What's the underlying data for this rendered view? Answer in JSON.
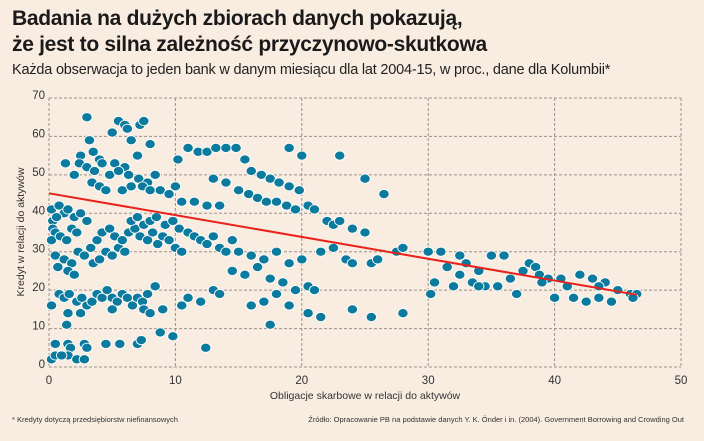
{
  "header": {
    "title_line1": "Badania na dużych zbiorach danych pokazują,",
    "title_line2": "że jest to silna zależność przyczynowo-skutkowa",
    "subtitle": "Każda obserwacja to jeden bank w danym miesiącu dla lat 2004-15, w proc., dane dla Kolumbii*"
  },
  "footer": {
    "note": "* Kredyty dotyczą przedsiębiorstw niefinansowych",
    "source": "Źródło: Opracowanie PB na podstawie danych Y. K. Önder i in. (2004). Government Borrowing and Crowding Out"
  },
  "colors": {
    "background": "#f9ece0",
    "point": "#0a7a9e",
    "point_edge": "#ffffff",
    "trend": "#e8211a",
    "grid": "#9a938c"
  },
  "chart_data": {
    "type": "scatter",
    "title": "Badania na dużych zbiorach danych pokazują, że jest to silna zależność przyczynowo-skutkowa",
    "xlabel": "Obligacje skarbowe w relacji do aktywów",
    "ylabel": "Kredyt w relacji do aktywów",
    "xlim": [
      0,
      50
    ],
    "ylim": [
      0,
      70
    ],
    "xticks": [
      0,
      10,
      20,
      30,
      40,
      50
    ],
    "yticks": [
      0,
      10,
      20,
      30,
      40,
      50,
      60,
      70
    ],
    "grid": true,
    "trendline": {
      "x": [
        0,
        46.5
      ],
      "y": [
        45.2,
        18.8
      ]
    },
    "points": [
      [
        0.2,
        41
      ],
      [
        0.3,
        38
      ],
      [
        0.3,
        36
      ],
      [
        0.5,
        35
      ],
      [
        0.2,
        33
      ],
      [
        0.8,
        42
      ],
      [
        1.2,
        40
      ],
      [
        0.6,
        39
      ],
      [
        1.5,
        41
      ],
      [
        2.0,
        39
      ],
      [
        2.5,
        40
      ],
      [
        3.0,
        38
      ],
      [
        1.8,
        36
      ],
      [
        2.2,
        35
      ],
      [
        0.9,
        34
      ],
      [
        1.4,
        33
      ],
      [
        0.5,
        29
      ],
      [
        1.2,
        28
      ],
      [
        1.8,
        27
      ],
      [
        2.3,
        30
      ],
      [
        2.8,
        29
      ],
      [
        3.3,
        31
      ],
      [
        0.7,
        26
      ],
      [
        1.5,
        25
      ],
      [
        2.0,
        24
      ],
      [
        3.5,
        27
      ],
      [
        4.0,
        28
      ],
      [
        4.5,
        30
      ],
      [
        5.0,
        29
      ],
      [
        5.5,
        31
      ],
      [
        6.0,
        30
      ],
      [
        3.8,
        33
      ],
      [
        4.2,
        35
      ],
      [
        4.8,
        36
      ],
      [
        5.2,
        34
      ],
      [
        5.8,
        33
      ],
      [
        6.3,
        35
      ],
      [
        6.8,
        36
      ],
      [
        7.2,
        34
      ],
      [
        7.8,
        33
      ],
      [
        8.2,
        35
      ],
      [
        8.6,
        32
      ],
      [
        9.0,
        34
      ],
      [
        9.5,
        33
      ],
      [
        10.0,
        31
      ],
      [
        10.5,
        30
      ],
      [
        6.5,
        38
      ],
      [
        7.0,
        39
      ],
      [
        7.5,
        37
      ],
      [
        8.0,
        38
      ],
      [
        8.5,
        39
      ],
      [
        9.2,
        37
      ],
      [
        9.8,
        38
      ],
      [
        10.3,
        36
      ],
      [
        11.0,
        35
      ],
      [
        11.5,
        34
      ],
      [
        12.0,
        33
      ],
      [
        12.5,
        32
      ],
      [
        13.0,
        34
      ],
      [
        13.5,
        31
      ],
      [
        14.0,
        30
      ],
      [
        14.5,
        33
      ],
      [
        0.2,
        16
      ],
      [
        0.8,
        19
      ],
      [
        1.2,
        18
      ],
      [
        1.6,
        19
      ],
      [
        2.2,
        17
      ],
      [
        2.6,
        18
      ],
      [
        3.0,
        16
      ],
      [
        3.4,
        17
      ],
      [
        3.8,
        19
      ],
      [
        4.2,
        18
      ],
      [
        4.6,
        20
      ],
      [
        5.0,
        18
      ],
      [
        5.4,
        17
      ],
      [
        5.8,
        19
      ],
      [
        6.2,
        18
      ],
      [
        6.6,
        16
      ],
      [
        7.0,
        18
      ],
      [
        7.4,
        17
      ],
      [
        7.8,
        19
      ],
      [
        8.4,
        21
      ],
      [
        1.5,
        14
      ],
      [
        2.5,
        14
      ],
      [
        1.4,
        11
      ],
      [
        5.0,
        15
      ],
      [
        7.5,
        15
      ],
      [
        8.0,
        14
      ],
      [
        9.0,
        15
      ],
      [
        10.5,
        16
      ],
      [
        11.0,
        18
      ],
      [
        12.0,
        17
      ],
      [
        13.0,
        20
      ],
      [
        13.5,
        19
      ],
      [
        0.5,
        6
      ],
      [
        1.5,
        6
      ],
      [
        1.7,
        5
      ],
      [
        2.8,
        6
      ],
      [
        3.0,
        5
      ],
      [
        4.5,
        6
      ],
      [
        5.6,
        6
      ],
      [
        7.0,
        6
      ],
      [
        7.3,
        7
      ],
      [
        8.8,
        9
      ],
      [
        9.8,
        8
      ],
      [
        12.4,
        5
      ],
      [
        0.2,
        2
      ],
      [
        0.5,
        3
      ],
      [
        1.5,
        3
      ],
      [
        2.2,
        2
      ],
      [
        2.8,
        2
      ],
      [
        1.0,
        3
      ],
      [
        3.0,
        65
      ],
      [
        5.5,
        64
      ],
      [
        6.0,
        63
      ],
      [
        7.2,
        63
      ],
      [
        7.5,
        64
      ],
      [
        6.2,
        62
      ],
      [
        5.0,
        61
      ],
      [
        3.2,
        59
      ],
      [
        6.5,
        59
      ],
      [
        8.0,
        58
      ],
      [
        3.5,
        56
      ],
      [
        2.5,
        55
      ],
      [
        4.0,
        54
      ],
      [
        5.2,
        53
      ],
      [
        6.0,
        52
      ],
      [
        7.0,
        55
      ],
      [
        1.3,
        53
      ],
      [
        2.4,
        53
      ],
      [
        3.0,
        52
      ],
      [
        3.6,
        51
      ],
      [
        4.2,
        53
      ],
      [
        4.8,
        50
      ],
      [
        5.5,
        51
      ],
      [
        6.3,
        50
      ],
      [
        7.1,
        49
      ],
      [
        7.8,
        48
      ],
      [
        8.4,
        50
      ],
      [
        2.0,
        50
      ],
      [
        3.4,
        48
      ],
      [
        4.0,
        47
      ],
      [
        4.5,
        46
      ],
      [
        5.8,
        46
      ],
      [
        6.5,
        47
      ],
      [
        7.4,
        47
      ],
      [
        8.0,
        46
      ],
      [
        8.8,
        46
      ],
      [
        9.5,
        45
      ],
      [
        10.0,
        47
      ],
      [
        10.5,
        43
      ],
      [
        11.5,
        43
      ],
      [
        12.5,
        42
      ],
      [
        13.5,
        42
      ],
      [
        10.2,
        54
      ],
      [
        11.0,
        57
      ],
      [
        11.8,
        56
      ],
      [
        12.5,
        56
      ],
      [
        13.2,
        57
      ],
      [
        14.0,
        57
      ],
      [
        14.8,
        57
      ],
      [
        15.5,
        54
      ],
      [
        16.0,
        51
      ],
      [
        16.8,
        50
      ],
      [
        17.5,
        49
      ],
      [
        18.2,
        48
      ],
      [
        19.0,
        47
      ],
      [
        19.8,
        46
      ],
      [
        15.0,
        46
      ],
      [
        15.8,
        45
      ],
      [
        16.5,
        44
      ],
      [
        17.2,
        43
      ],
      [
        18.0,
        43
      ],
      [
        18.8,
        42
      ],
      [
        19.5,
        41
      ],
      [
        20.5,
        42
      ],
      [
        21.0,
        41
      ],
      [
        22.0,
        38
      ],
      [
        22.5,
        37
      ],
      [
        23.0,
        38
      ],
      [
        24.0,
        36
      ],
      [
        25.0,
        35
      ],
      [
        21.5,
        30
      ],
      [
        22.5,
        31
      ],
      [
        23.5,
        28
      ],
      [
        24.0,
        27
      ],
      [
        25.5,
        27
      ],
      [
        26.0,
        28
      ],
      [
        27.5,
        30
      ],
      [
        28.0,
        31
      ],
      [
        15.0,
        30
      ],
      [
        16.0,
        29
      ],
      [
        17.0,
        28
      ],
      [
        18.0,
        30
      ],
      [
        19.0,
        27
      ],
      [
        20.0,
        28
      ],
      [
        14.5,
        25
      ],
      [
        15.5,
        24
      ],
      [
        16.5,
        26
      ],
      [
        17.5,
        23
      ],
      [
        18.5,
        22
      ],
      [
        19.5,
        20
      ],
      [
        20.5,
        21
      ],
      [
        21.0,
        20
      ],
      [
        18.0,
        19
      ],
      [
        16.0,
        16
      ],
      [
        17.0,
        17
      ],
      [
        19.0,
        16
      ],
      [
        20.5,
        14
      ],
      [
        24.0,
        15
      ],
      [
        25.5,
        13
      ],
      [
        28.0,
        14
      ],
      [
        17.5,
        11
      ],
      [
        21.5,
        13
      ],
      [
        13.0,
        49
      ],
      [
        14.0,
        48
      ],
      [
        19.0,
        57
      ],
      [
        20.0,
        55
      ],
      [
        23.0,
        55
      ],
      [
        25.0,
        49
      ],
      [
        26.5,
        45
      ],
      [
        30.0,
        30
      ],
      [
        31.0,
        30
      ],
      [
        32.5,
        29
      ],
      [
        33.0,
        27
      ],
      [
        34.0,
        25
      ],
      [
        35.0,
        29
      ],
      [
        36.0,
        29
      ],
      [
        31.5,
        26
      ],
      [
        32.5,
        24
      ],
      [
        33.5,
        22
      ],
      [
        34.5,
        21
      ],
      [
        30.5,
        22
      ],
      [
        32.0,
        21
      ],
      [
        34.0,
        21
      ],
      [
        30.2,
        19
      ],
      [
        38.0,
        27
      ],
      [
        38.5,
        26
      ],
      [
        37.5,
        25
      ],
      [
        38.8,
        24
      ],
      [
        39.5,
        23
      ],
      [
        39.0,
        22
      ],
      [
        40.5,
        23
      ],
      [
        41.0,
        21
      ],
      [
        42.0,
        24
      ],
      [
        43.0,
        23
      ],
      [
        44.0,
        22
      ],
      [
        43.5,
        21
      ],
      [
        45.0,
        20
      ],
      [
        46.0,
        19
      ],
      [
        46.5,
        19
      ],
      [
        37.0,
        19
      ],
      [
        40.0,
        18
      ],
      [
        41.5,
        18
      ],
      [
        42.5,
        17
      ],
      [
        43.5,
        18
      ],
      [
        44.5,
        17
      ],
      [
        46.2,
        18
      ],
      [
        36.5,
        23
      ],
      [
        35.5,
        21
      ]
    ]
  }
}
